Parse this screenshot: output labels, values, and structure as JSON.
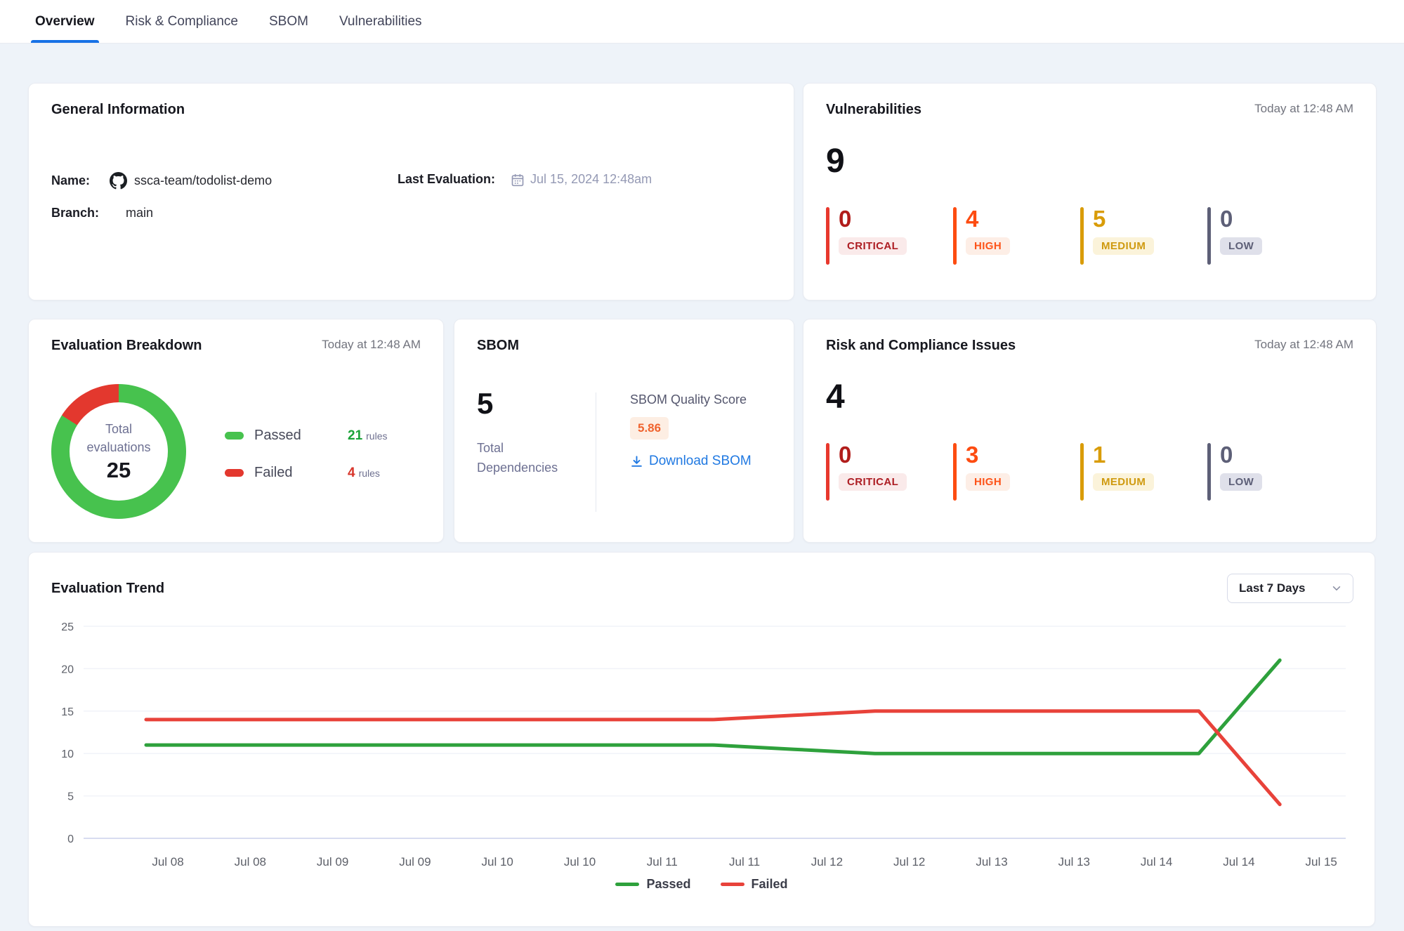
{
  "tabs": [
    {
      "label": "Overview",
      "active": true
    },
    {
      "label": "Risk & Compliance",
      "active": false
    },
    {
      "label": "SBOM",
      "active": false
    },
    {
      "label": "Vulnerabilities",
      "active": false
    }
  ],
  "general_info": {
    "title": "General Information",
    "name_label": "Name:",
    "name_value": "ssca-team/todolist-demo",
    "branch_label": "Branch:",
    "branch_value": "main",
    "last_eval_label": "Last Evaluation:",
    "last_eval_value": "Jul 15, 2024 12:48am"
  },
  "vulnerabilities": {
    "title": "Vulnerabilities",
    "timestamp": "Today at 12:48 AM",
    "total": "9",
    "severities": [
      {
        "label": "CRITICAL",
        "count": "0"
      },
      {
        "label": "HIGH",
        "count": "4"
      },
      {
        "label": "MEDIUM",
        "count": "5"
      },
      {
        "label": "LOW",
        "count": "0"
      }
    ]
  },
  "evaluation_breakdown": {
    "title": "Evaluation Breakdown",
    "timestamp": "Today at 12:48 AM",
    "center": {
      "line1": "Total",
      "line2": "evaluations",
      "value": "25"
    },
    "legend": [
      {
        "label": "Passed",
        "count": "21",
        "unit": "rules"
      },
      {
        "label": "Failed",
        "count": "4",
        "unit": "rules"
      }
    ]
  },
  "sbom": {
    "title": "SBOM",
    "total": "5",
    "total_label_line1": "Total",
    "total_label_line2": "Dependencies",
    "quality_label": "SBOM Quality Score",
    "quality_score": "5.86",
    "download_label": "Download SBOM"
  },
  "risk_compliance": {
    "title": "Risk and Compliance Issues",
    "timestamp": "Today at 12:48 AM",
    "total": "4",
    "severities": [
      {
        "label": "CRITICAL",
        "count": "0"
      },
      {
        "label": "HIGH",
        "count": "3"
      },
      {
        "label": "MEDIUM",
        "count": "1"
      },
      {
        "label": "LOW",
        "count": "0"
      }
    ]
  },
  "trend": {
    "title": "Evaluation Trend",
    "range_label": "Last 7 Days"
  },
  "colors": {
    "accent_blue": "#1771e6",
    "link_blue": "#2079e2",
    "passed_green": "#47c24e",
    "failed_red": "#e3382e",
    "line_green": "#2ea13c",
    "line_red": "#e8423a",
    "critical": "#b11d1b",
    "high": "#fd4c11",
    "medium": "#d99c08",
    "low": "#5d5f77",
    "score_orange": "#f0632e"
  },
  "chart_data": [
    {
      "id": "evaluation_breakdown_donut",
      "type": "pie",
      "title": "Evaluation Breakdown",
      "center_label": "Total evaluations",
      "center_value": 25,
      "slices": [
        {
          "label": "Passed",
          "value": 21,
          "color": "#47c24e"
        },
        {
          "label": "Failed",
          "value": 4,
          "color": "#e3382e"
        }
      ]
    },
    {
      "id": "evaluation_trend",
      "type": "line",
      "title": "Evaluation Trend",
      "range": "Last 7 Days",
      "x": [
        "Jul 08",
        "Jul 08",
        "Jul 09",
        "Jul 09",
        "Jul 10",
        "Jul 10",
        "Jul 11",
        "Jul 11",
        "Jul 12",
        "Jul 12",
        "Jul 13",
        "Jul 13",
        "Jul 14",
        "Jul 14",
        "Jul 15"
      ],
      "xlabel": "",
      "ylabel": "",
      "ylim": [
        0,
        25
      ],
      "y_ticks": [
        0,
        5,
        10,
        15,
        20,
        25
      ],
      "grid": true,
      "legend_position": "bottom",
      "series": [
        {
          "name": "Passed",
          "color": "#2ea13c",
          "values": [
            11,
            11,
            11,
            11,
            11,
            11,
            11,
            11,
            10.5,
            10,
            10,
            10,
            10,
            10,
            21
          ]
        },
        {
          "name": "Failed",
          "color": "#e8423a",
          "values": [
            14,
            14,
            14,
            14,
            14,
            14,
            14,
            14,
            14.5,
            15,
            15,
            15,
            15,
            15,
            4
          ]
        }
      ]
    }
  ]
}
